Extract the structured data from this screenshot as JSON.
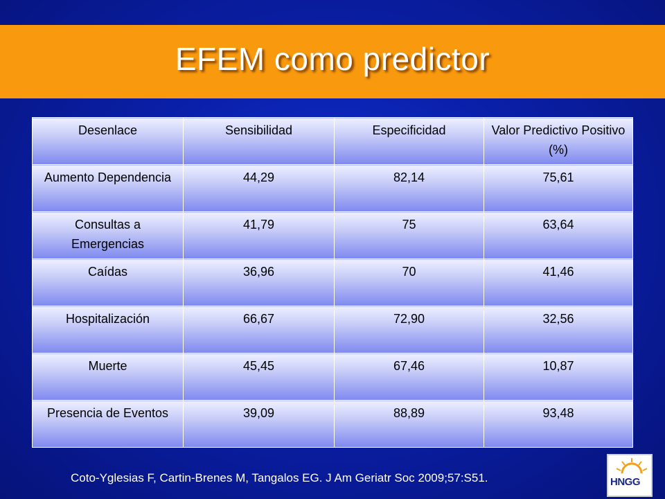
{
  "slide": {
    "title": "EFEM como predictor",
    "citation": "Coto-Yglesias F, Cartin-Brenes M, Tangalos EG. J Am Geriatr Soc 2009;57:S51.",
    "logo_text": "HNGG"
  },
  "table": {
    "headers": [
      "Desenlace",
      "Sensibilidad",
      "Especificidad",
      "Valor Predictivo Positivo (%)"
    ],
    "rows": [
      [
        "Aumento Dependencia",
        "44,29",
        "82,14",
        "75,61"
      ],
      [
        "Consultas a Emergencias",
        "41,79",
        "75",
        "63,64"
      ],
      [
        "Caídas",
        "36,96",
        "70",
        "41,46"
      ],
      [
        "Hospitalización",
        "66,67",
        "72,90",
        "32,56"
      ],
      [
        "Muerte",
        "45,45",
        "67,46",
        "10,87"
      ],
      [
        "Presencia de Eventos",
        "39,09",
        "88,89",
        "93,48"
      ]
    ],
    "highlight_color": "#ee0000"
  },
  "colors": {
    "title_band": "#f99a0e",
    "background": "#0a1fa8"
  }
}
